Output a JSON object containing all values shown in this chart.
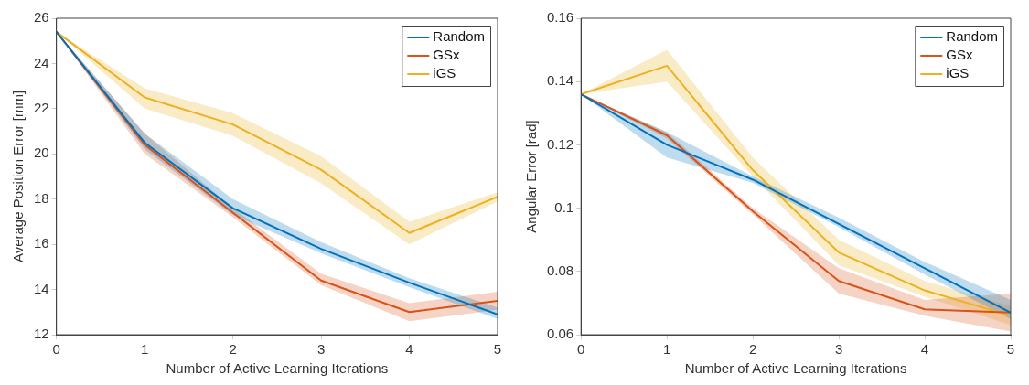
{
  "chart_data": [
    {
      "type": "line",
      "xlabel": "Number of Active Learning Iterations",
      "ylabel": "Average Position Error [mm]",
      "x": [
        0,
        1,
        2,
        3,
        4,
        5
      ],
      "xlim": [
        0,
        5
      ],
      "xticks": [
        0,
        1,
        2,
        3,
        4,
        5
      ],
      "ylim": [
        12,
        26
      ],
      "yticks": [
        12,
        14,
        16,
        18,
        20,
        22,
        24,
        26
      ],
      "legend": "top right",
      "marker": "none",
      "series": [
        {
          "name": "Random",
          "color": "#0072bd",
          "values": [
            25.4,
            20.5,
            17.6,
            15.8,
            14.3,
            12.9
          ],
          "lower": [
            25.4,
            20.2,
            17.3,
            15.6,
            14.1,
            12.7
          ],
          "upper": [
            25.4,
            20.9,
            18.0,
            16.1,
            14.5,
            13.2
          ]
        },
        {
          "name": "GSx",
          "color": "#d95319",
          "values": [
            25.4,
            20.4,
            17.4,
            14.4,
            13.0,
            13.5
          ],
          "lower": [
            25.4,
            20.0,
            17.2,
            14.2,
            12.6,
            13.1
          ],
          "upper": [
            25.4,
            20.9,
            17.6,
            14.7,
            13.4,
            13.9
          ]
        },
        {
          "name": "iGS",
          "color": "#edb120",
          "values": [
            25.4,
            22.5,
            21.3,
            19.3,
            16.5,
            18.1
          ],
          "lower": [
            25.4,
            22.0,
            20.8,
            18.7,
            16.0,
            17.9
          ],
          "upper": [
            25.4,
            22.9,
            21.8,
            19.9,
            17.0,
            18.3
          ]
        }
      ]
    },
    {
      "type": "line",
      "xlabel": "Number of Active Learning Iterations",
      "ylabel": "Angular Error [rad]",
      "x": [
        0,
        1,
        2,
        3,
        4,
        5
      ],
      "xlim": [
        0,
        5
      ],
      "xticks": [
        0,
        1,
        2,
        3,
        4,
        5
      ],
      "ylim": [
        0.06,
        0.16
      ],
      "yticks": [
        0.06,
        0.08,
        0.1,
        0.12,
        0.14,
        0.16
      ],
      "legend": "top right",
      "marker": "none",
      "series": [
        {
          "name": "Random",
          "color": "#0072bd",
          "values": [
            0.136,
            0.12,
            0.109,
            0.095,
            0.081,
            0.067
          ],
          "lower": [
            0.136,
            0.116,
            0.108,
            0.094,
            0.079,
            0.065
          ],
          "upper": [
            0.136,
            0.124,
            0.11,
            0.097,
            0.083,
            0.071
          ]
        },
        {
          "name": "GSx",
          "color": "#d95319",
          "values": [
            0.136,
            0.123,
            0.099,
            0.077,
            0.068,
            0.067
          ],
          "lower": [
            0.136,
            0.122,
            0.098,
            0.073,
            0.066,
            0.061
          ],
          "upper": [
            0.136,
            0.124,
            0.1,
            0.081,
            0.071,
            0.073
          ]
        },
        {
          "name": "iGS",
          "color": "#edb120",
          "values": [
            0.136,
            0.145,
            0.112,
            0.086,
            0.074,
            0.066
          ],
          "lower": [
            0.136,
            0.14,
            0.11,
            0.082,
            0.072,
            0.063
          ],
          "upper": [
            0.136,
            0.15,
            0.116,
            0.09,
            0.077,
            0.069
          ]
        }
      ]
    }
  ]
}
